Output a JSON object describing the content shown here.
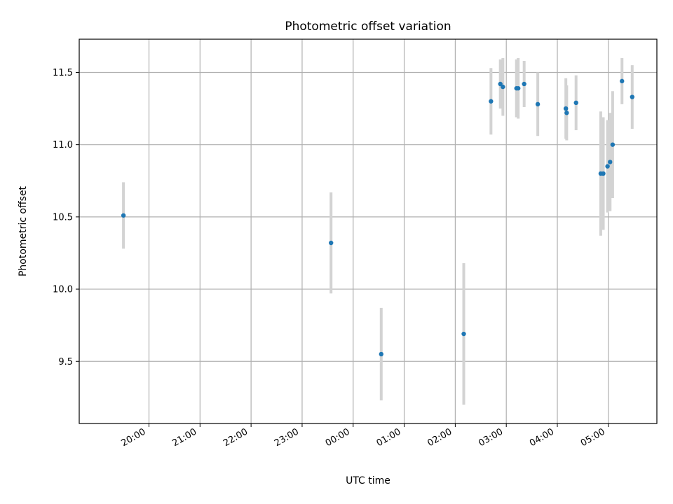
{
  "chart_data": {
    "type": "scatter",
    "title": "Photometric offset variation",
    "xlabel": "UTC time",
    "ylabel": "Photometric offset",
    "grid": true,
    "colors": {
      "point": "#1f77b4",
      "errorbar": "#d3d3d3",
      "grid": "#b0b0b0"
    },
    "x_ticks": [
      {
        "t": "20:00",
        "label": "20:00"
      },
      {
        "t": "21:00",
        "label": "21:00"
      },
      {
        "t": "22:00",
        "label": "22:00"
      },
      {
        "t": "23:00",
        "label": "23:00"
      },
      {
        "t": "00:00",
        "label": "00:00"
      },
      {
        "t": "01:00",
        "label": "01:00"
      },
      {
        "t": "02:00",
        "label": "02:00"
      },
      {
        "t": "03:00",
        "label": "03:00"
      },
      {
        "t": "04:00",
        "label": "04:00"
      },
      {
        "t": "05:00",
        "label": "05:00"
      }
    ],
    "y_ticks": [
      9.5,
      10.0,
      10.5,
      11.0,
      11.5
    ],
    "y_tick_labels": [
      "9.5",
      "10.0",
      "10.5",
      "11.0",
      "11.5"
    ],
    "xlim": [
      "18:38",
      "05:57"
    ],
    "ylim": [
      9.07,
      11.73
    ],
    "points": [
      {
        "t": "19:30",
        "y": 10.51,
        "err": 0.23
      },
      {
        "t": "23:34",
        "y": 10.32,
        "err": 0.35
      },
      {
        "t": "00:33",
        "y": 9.55,
        "err": 0.32
      },
      {
        "t": "02:10",
        "y": 9.69,
        "err": 0.49
      },
      {
        "t": "02:42",
        "y": 11.3,
        "err": 0.23
      },
      {
        "t": "02:53",
        "y": 11.42,
        "err": 0.17
      },
      {
        "t": "02:56",
        "y": 11.4,
        "err": 0.2
      },
      {
        "t": "03:12",
        "y": 11.39,
        "err": 0.2
      },
      {
        "t": "03:14",
        "y": 11.39,
        "err": 0.21
      },
      {
        "t": "03:21",
        "y": 11.42,
        "err": 0.16
      },
      {
        "t": "03:37",
        "y": 11.28,
        "err": 0.22
      },
      {
        "t": "04:10",
        "y": 11.25,
        "err": 0.21
      },
      {
        "t": "04:11",
        "y": 11.22,
        "err": 0.19
      },
      {
        "t": "04:22",
        "y": 11.29,
        "err": 0.19
      },
      {
        "t": "04:51",
        "y": 10.8,
        "err": 0.43
      },
      {
        "t": "04:54",
        "y": 10.8,
        "err": 0.39
      },
      {
        "t": "04:59",
        "y": 10.85,
        "err": 0.32
      },
      {
        "t": "05:02",
        "y": 10.88,
        "err": 0.34
      },
      {
        "t": "05:05",
        "y": 11.0,
        "err": 0.37
      },
      {
        "t": "05:16",
        "y": 11.44,
        "err": 0.16
      },
      {
        "t": "05:28",
        "y": 11.33,
        "err": 0.22
      }
    ]
  }
}
